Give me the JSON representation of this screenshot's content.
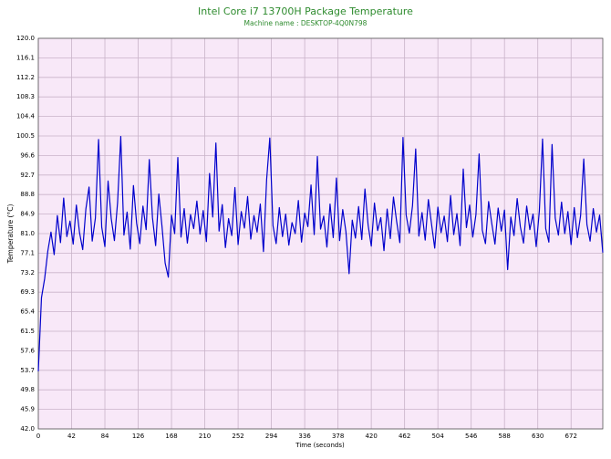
{
  "chart_data": {
    "type": "line",
    "title": "Intel Core i7 13700H Package Temperature",
    "subtitle": "Machine name : DESKTOP-4Q0N798",
    "xlabel": "Time (seconds)",
    "ylabel": "Temperature (°C)",
    "color": "#0000cc",
    "grid": true,
    "xlim": [
      0,
      712
    ],
    "ylim": [
      42,
      120
    ],
    "xticks": [
      0,
      42,
      84,
      126,
      168,
      210,
      252,
      294,
      336,
      378,
      420,
      462,
      504,
      546,
      588,
      630,
      672
    ],
    "yticks": [
      {
        "value": 42,
        "label": "42.0"
      },
      45.9,
      49.8,
      53.7,
      57.6,
      61.5,
      65.4,
      69.3,
      73.2,
      77.1,
      {
        "value": 81,
        "label": "81.0"
      },
      84.9,
      88.8,
      92.7,
      96.6,
      100.5,
      104.4,
      108.3,
      112.2,
      116.1,
      {
        "value": 120,
        "label": "120.0"
      }
    ],
    "x": [
      0,
      4,
      8,
      12,
      16,
      20,
      24,
      28,
      32,
      36,
      40,
      44,
      48,
      52,
      56,
      60,
      64,
      68,
      72,
      76,
      80,
      84,
      88,
      92,
      96,
      100,
      104,
      108,
      112,
      116,
      120,
      124,
      128,
      132,
      136,
      140,
      144,
      148,
      152,
      156,
      160,
      164,
      168,
      172,
      176,
      180,
      184,
      188,
      192,
      196,
      200,
      204,
      208,
      212,
      216,
      220,
      224,
      228,
      232,
      236,
      240,
      244,
      248,
      252,
      256,
      260,
      264,
      268,
      272,
      276,
      280,
      284,
      288,
      292,
      296,
      300,
      304,
      308,
      312,
      316,
      320,
      324,
      328,
      332,
      336,
      340,
      344,
      348,
      352,
      356,
      360,
      364,
      368,
      372,
      376,
      380,
      384,
      388,
      392,
      396,
      400,
      404,
      408,
      412,
      416,
      420,
      424,
      428,
      432,
      436,
      440,
      444,
      448,
      452,
      456,
      460,
      464,
      468,
      472,
      476,
      480,
      484,
      488,
      492,
      496,
      500,
      504,
      508,
      512,
      516,
      520,
      524,
      528,
      532,
      536,
      540,
      544,
      548,
      552,
      556,
      560,
      564,
      568,
      572,
      576,
      580,
      584,
      588,
      592,
      596,
      600,
      604,
      608,
      612,
      616,
      620,
      624,
      628,
      632,
      636,
      640,
      644,
      648,
      652,
      656,
      660,
      664,
      668,
      672,
      676,
      680,
      684,
      688,
      692,
      696,
      700,
      704,
      708,
      712
    ],
    "values": [
      53.5,
      68.2,
      72.0,
      77.5,
      81.3,
      76.8,
      84.6,
      79.2,
      88.1,
      80.4,
      83.5,
      78.9,
      86.7,
      81.2,
      77.8,
      85.9,
      90.3,
      79.5,
      84.1,
      99.8,
      82.3,
      78.4,
      91.5,
      84.0,
      79.6,
      87.2,
      100.4,
      80.7,
      85.3,
      77.9,
      90.6,
      83.1,
      79.0,
      86.5,
      81.8,
      95.8,
      84.2,
      78.6,
      88.9,
      82.5,
      75.1,
      72.3,
      84.7,
      81.0,
      96.2,
      80.3,
      86.0,
      79.1,
      84.8,
      82.0,
      87.5,
      80.9,
      85.6,
      79.4,
      93.0,
      84.3,
      99.1,
      81.5,
      86.8,
      78.2,
      84.0,
      80.6,
      90.2,
      78.8,
      85.4,
      82.1,
      88.4,
      79.9,
      84.6,
      81.3,
      86.9,
      77.4,
      91.8,
      100.1,
      82.6,
      79.0,
      86.2,
      80.4,
      84.9,
      78.7,
      83.2,
      81.0,
      87.6,
      79.3,
      85.1,
      82.4,
      90.7,
      80.8,
      96.4,
      81.9,
      84.5,
      78.3,
      86.9,
      80.2,
      92.1,
      79.6,
      85.8,
      81.4,
      73.0,
      83.7,
      80.1,
      86.4,
      79.8,
      89.9,
      82.7,
      78.5,
      87.1,
      81.6,
      84.2,
      77.6,
      85.9,
      80.0,
      88.3,
      83.4,
      79.2,
      100.2,
      84.7,
      81.1,
      86.6,
      97.9,
      80.5,
      85.2,
      79.7,
      87.8,
      82.9,
      78.1,
      86.3,
      81.2,
      84.5,
      79.4,
      88.6,
      80.8,
      85.0,
      78.6,
      93.9,
      82.2,
      86.7,
      80.3,
      84.8,
      96.9,
      81.7,
      79.0,
      87.4,
      83.0,
      78.9,
      86.1,
      81.5,
      85.7,
      73.8,
      84.3,
      80.6,
      88.0,
      82.4,
      79.1,
      86.5,
      81.8,
      84.9,
      78.4,
      85.6,
      99.9,
      82.0,
      79.3,
      98.8,
      84.1,
      80.7,
      87.3,
      81.0,
      85.4,
      78.8,
      86.2,
      80.2,
      84.6,
      95.9,
      82.8,
      79.5,
      86.0,
      81.3,
      84.7,
      77.2
    ]
  }
}
